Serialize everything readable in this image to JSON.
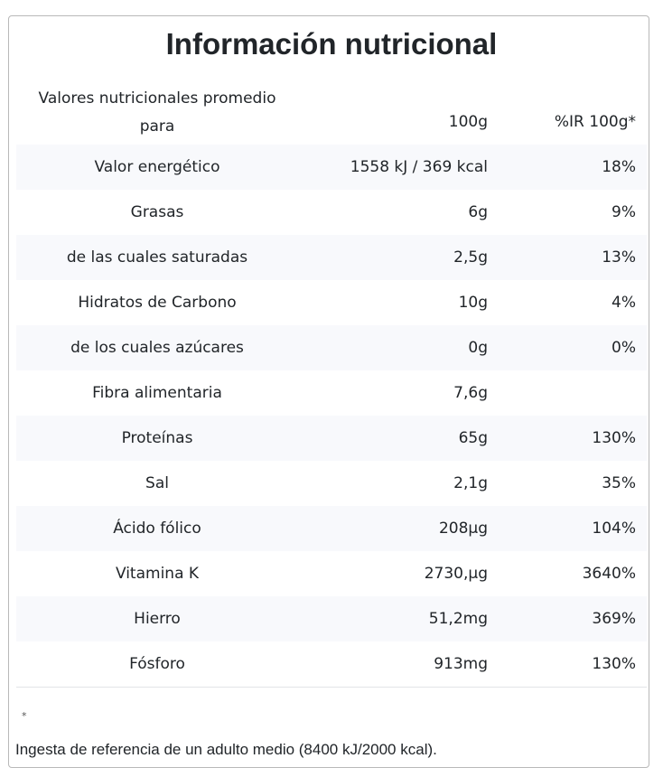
{
  "title": "Información nutricional",
  "header": {
    "label_line1": "Valores nutricionales promedio",
    "label_line2": "para",
    "col_per100": "100g",
    "col_ir": "%IR 100g*"
  },
  "rows": [
    {
      "name": "Valor energético",
      "per100": "1558 kJ / 369 kcal",
      "ir": "18%"
    },
    {
      "name": "Grasas",
      "per100": "6g",
      "ir": "9%"
    },
    {
      "name": "de las cuales saturadas",
      "per100": "2,5g",
      "ir": "13%"
    },
    {
      "name": "Hidratos de Carbono",
      "per100": "10g",
      "ir": "4%"
    },
    {
      "name": "de los cuales azúcares",
      "per100": "0g",
      "ir": "0%"
    },
    {
      "name": "Fibra alimentaria",
      "per100": "7,6g",
      "ir": ""
    },
    {
      "name": "Proteínas",
      "per100": "65g",
      "ir": "130%"
    },
    {
      "name": "Sal",
      "per100": "2,1g",
      "ir": "35%"
    },
    {
      "name": "Ácido fólico",
      "per100": "208µg",
      "ir": "104%"
    },
    {
      "name": "Vitamina K",
      "per100": "2730,µg",
      "ir": "3640%"
    },
    {
      "name": "Hierro",
      "per100": "51,2mg",
      "ir": "369%"
    },
    {
      "name": "Fósforo",
      "per100": "913mg",
      "ir": "130%"
    }
  ],
  "footnote": {
    "asterisk": "*",
    "text": "Ingesta de referencia de un adulto medio (8400 kJ/2000 kcal)."
  }
}
